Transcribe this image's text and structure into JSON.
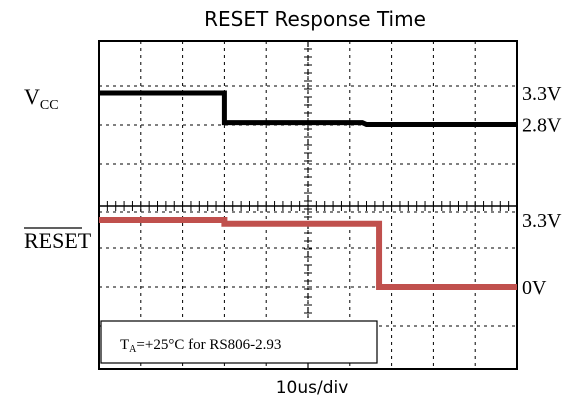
{
  "chart_data": {
    "type": "line",
    "title": "RESET  Response Time",
    "xlabel": "10us/div",
    "annotation": {
      "prefix": "T",
      "subscript": "A",
      "text": "=+25°C for RS806-2.93"
    },
    "x_divisions": 10,
    "grid": "dotted",
    "traces": [
      {
        "label_main": "V",
        "label_sub": "CC",
        "color": "#000000",
        "x": [
          0,
          3.0,
          3.0,
          6.3,
          6.4,
          10
        ],
        "y": [
          3.3,
          3.3,
          2.83,
          2.83,
          2.8,
          2.8
        ],
        "right_labels": [
          {
            "text": "3.3V",
            "value": 3.3
          },
          {
            "text": "2.8V",
            "value": 2.8
          }
        ]
      },
      {
        "label_main": "RESET",
        "label_sub": "",
        "overline": true,
        "color": "#c0504d",
        "x": [
          0,
          3.0,
          3.0,
          6.7,
          6.7,
          10
        ],
        "y": [
          3.3,
          3.3,
          3.12,
          3.12,
          0,
          0
        ],
        "right_labels": [
          {
            "text": "3.3V",
            "value": 3.3
          },
          {
            "text": "0V",
            "value": 0
          }
        ]
      }
    ]
  }
}
